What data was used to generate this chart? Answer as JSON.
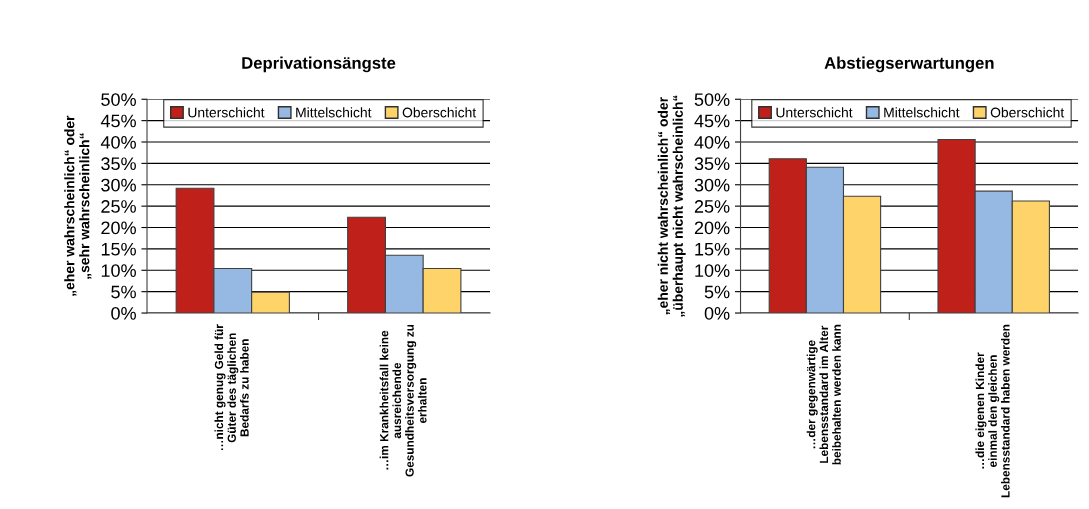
{
  "chart_data": [
    {
      "type": "bar",
      "title": "Deprivationsängste",
      "ylabel": "„eher wahrscheinlich“ oder\n„sehr wahrscheinlich“",
      "categories": [
        "…nicht genug Geld für\nGüter des täglichen\nBedarfs zu haben",
        "…im Krankheitsfall keine\nausreichende\nGesundheitsversorgung zu\nerhalten"
      ],
      "series": [
        {
          "name": "Unterschicht",
          "color": "#c0201a",
          "values": [
            29.2,
            22.4
          ]
        },
        {
          "name": "Mittelschicht",
          "color": "#95b9e3",
          "values": [
            10.4,
            13.5
          ]
        },
        {
          "name": "Oberschicht",
          "color": "#fed46a",
          "values": [
            4.9,
            10.4
          ]
        }
      ],
      "ylim": [
        0,
        50
      ],
      "yticks": [
        {
          "value": 0,
          "label": "0%"
        },
        {
          "value": 5,
          "label": "5%"
        },
        {
          "value": 10,
          "label": "10%"
        },
        {
          "value": 15,
          "label": "15%"
        },
        {
          "value": 20,
          "label": "20%"
        },
        {
          "value": 25,
          "label": "25%"
        },
        {
          "value": 30,
          "label": "30%"
        },
        {
          "value": 35,
          "label": "35%"
        },
        {
          "value": 40,
          "label": "40%"
        },
        {
          "value": 45,
          "label": "45%"
        },
        {
          "value": 50,
          "label": "50%"
        }
      ],
      "grid": "y",
      "legend": "top right"
    },
    {
      "type": "bar",
      "title": "Abstiegserwartungen",
      "ylabel": "„eher nicht wahrscheinlich“ oder\n„überhaupt nicht wahrscheinlich“",
      "categories": [
        "…der gegenwärtige\nLebensstandard im Alter\nbeibehalten werden kann",
        "…die eigenen Kinder\neinmal den gleichen\nLebensstandard haben werden"
      ],
      "series": [
        {
          "name": "Unterschicht",
          "color": "#c0201a",
          "values": [
            36.1,
            40.6
          ]
        },
        {
          "name": "Mittelschicht",
          "color": "#95b9e3",
          "values": [
            34.1,
            28.5
          ]
        },
        {
          "name": "Oberschicht",
          "color": "#fed46a",
          "values": [
            27.3,
            26.2
          ]
        }
      ],
      "ylim": [
        0,
        50
      ],
      "yticks": [
        {
          "value": 0,
          "label": "0%"
        },
        {
          "value": 5,
          "label": "5%"
        },
        {
          "value": 10,
          "label": "10%"
        },
        {
          "value": 15,
          "label": "15%"
        },
        {
          "value": 20,
          "label": "20%"
        },
        {
          "value": 25,
          "label": "25%"
        },
        {
          "value": 30,
          "label": "30%"
        },
        {
          "value": 35,
          "label": "35%"
        },
        {
          "value": 40,
          "label": "40%"
        },
        {
          "value": 45,
          "label": "45%"
        },
        {
          "value": 50,
          "label": "50%"
        }
      ],
      "grid": "y",
      "legend": "top right"
    }
  ]
}
